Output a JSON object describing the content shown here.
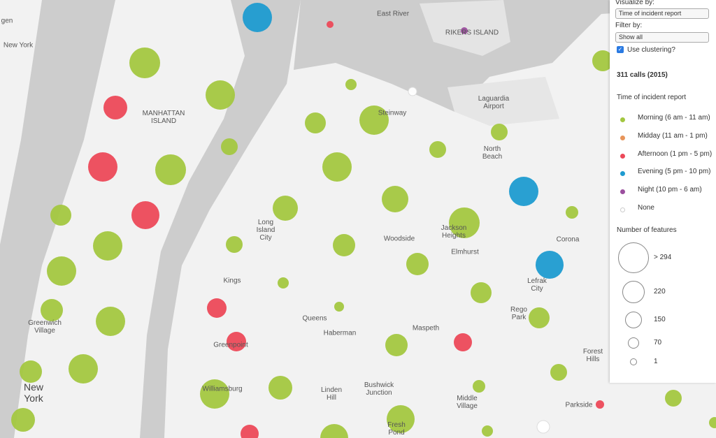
{
  "map": {
    "labels": [
      "gen",
      "New York",
      "East River",
      "RIKERS ISLAND",
      "MANHATTAN ISLAND",
      "Steinway",
      "Laguardia Airport",
      "North Beach",
      "Long Island City",
      "Woodside",
      "Jackson Heights",
      "Elmhurst",
      "Corona",
      "Lefrak City",
      "Kings",
      "Queens",
      "Greenwich Village",
      "Haberman",
      "Maspeth",
      "Rego Park",
      "Greenpoint",
      "Forest Hills",
      "New York",
      "Williamsburg",
      "Linden Hill",
      "Bushwick Junction",
      "Middle Village",
      "Parkside",
      "Fresh Pond"
    ]
  },
  "panel": {
    "visualize_label": "Visualize by:",
    "visualize_value": "Time of incident report",
    "filter_label": "Filter by:",
    "filter_value": "Show all",
    "clustering_label": "Use clustering?",
    "title": "311 calls (2015)",
    "legend_title": "Time of incident report",
    "legend": [
      {
        "label": "Morning (6 am - 11 am)",
        "color": "#a3c740"
      },
      {
        "label": "Midday (11 am - 1 pm)",
        "color": "#e8955a"
      },
      {
        "label": "Afternoon (1 pm - 5 pm)",
        "color": "#ec4959"
      },
      {
        "label": "Evening (5 pm - 10 pm)",
        "color": "#1e9bd0"
      },
      {
        "label": "Night (10 pm - 6 am)",
        "color": "#9b4f9e"
      },
      {
        "label": "None",
        "color": "#ffffff"
      }
    ],
    "size_title": "Number of features",
    "sizes": [
      "> 294",
      "220",
      "150",
      "70",
      "1"
    ]
  }
}
